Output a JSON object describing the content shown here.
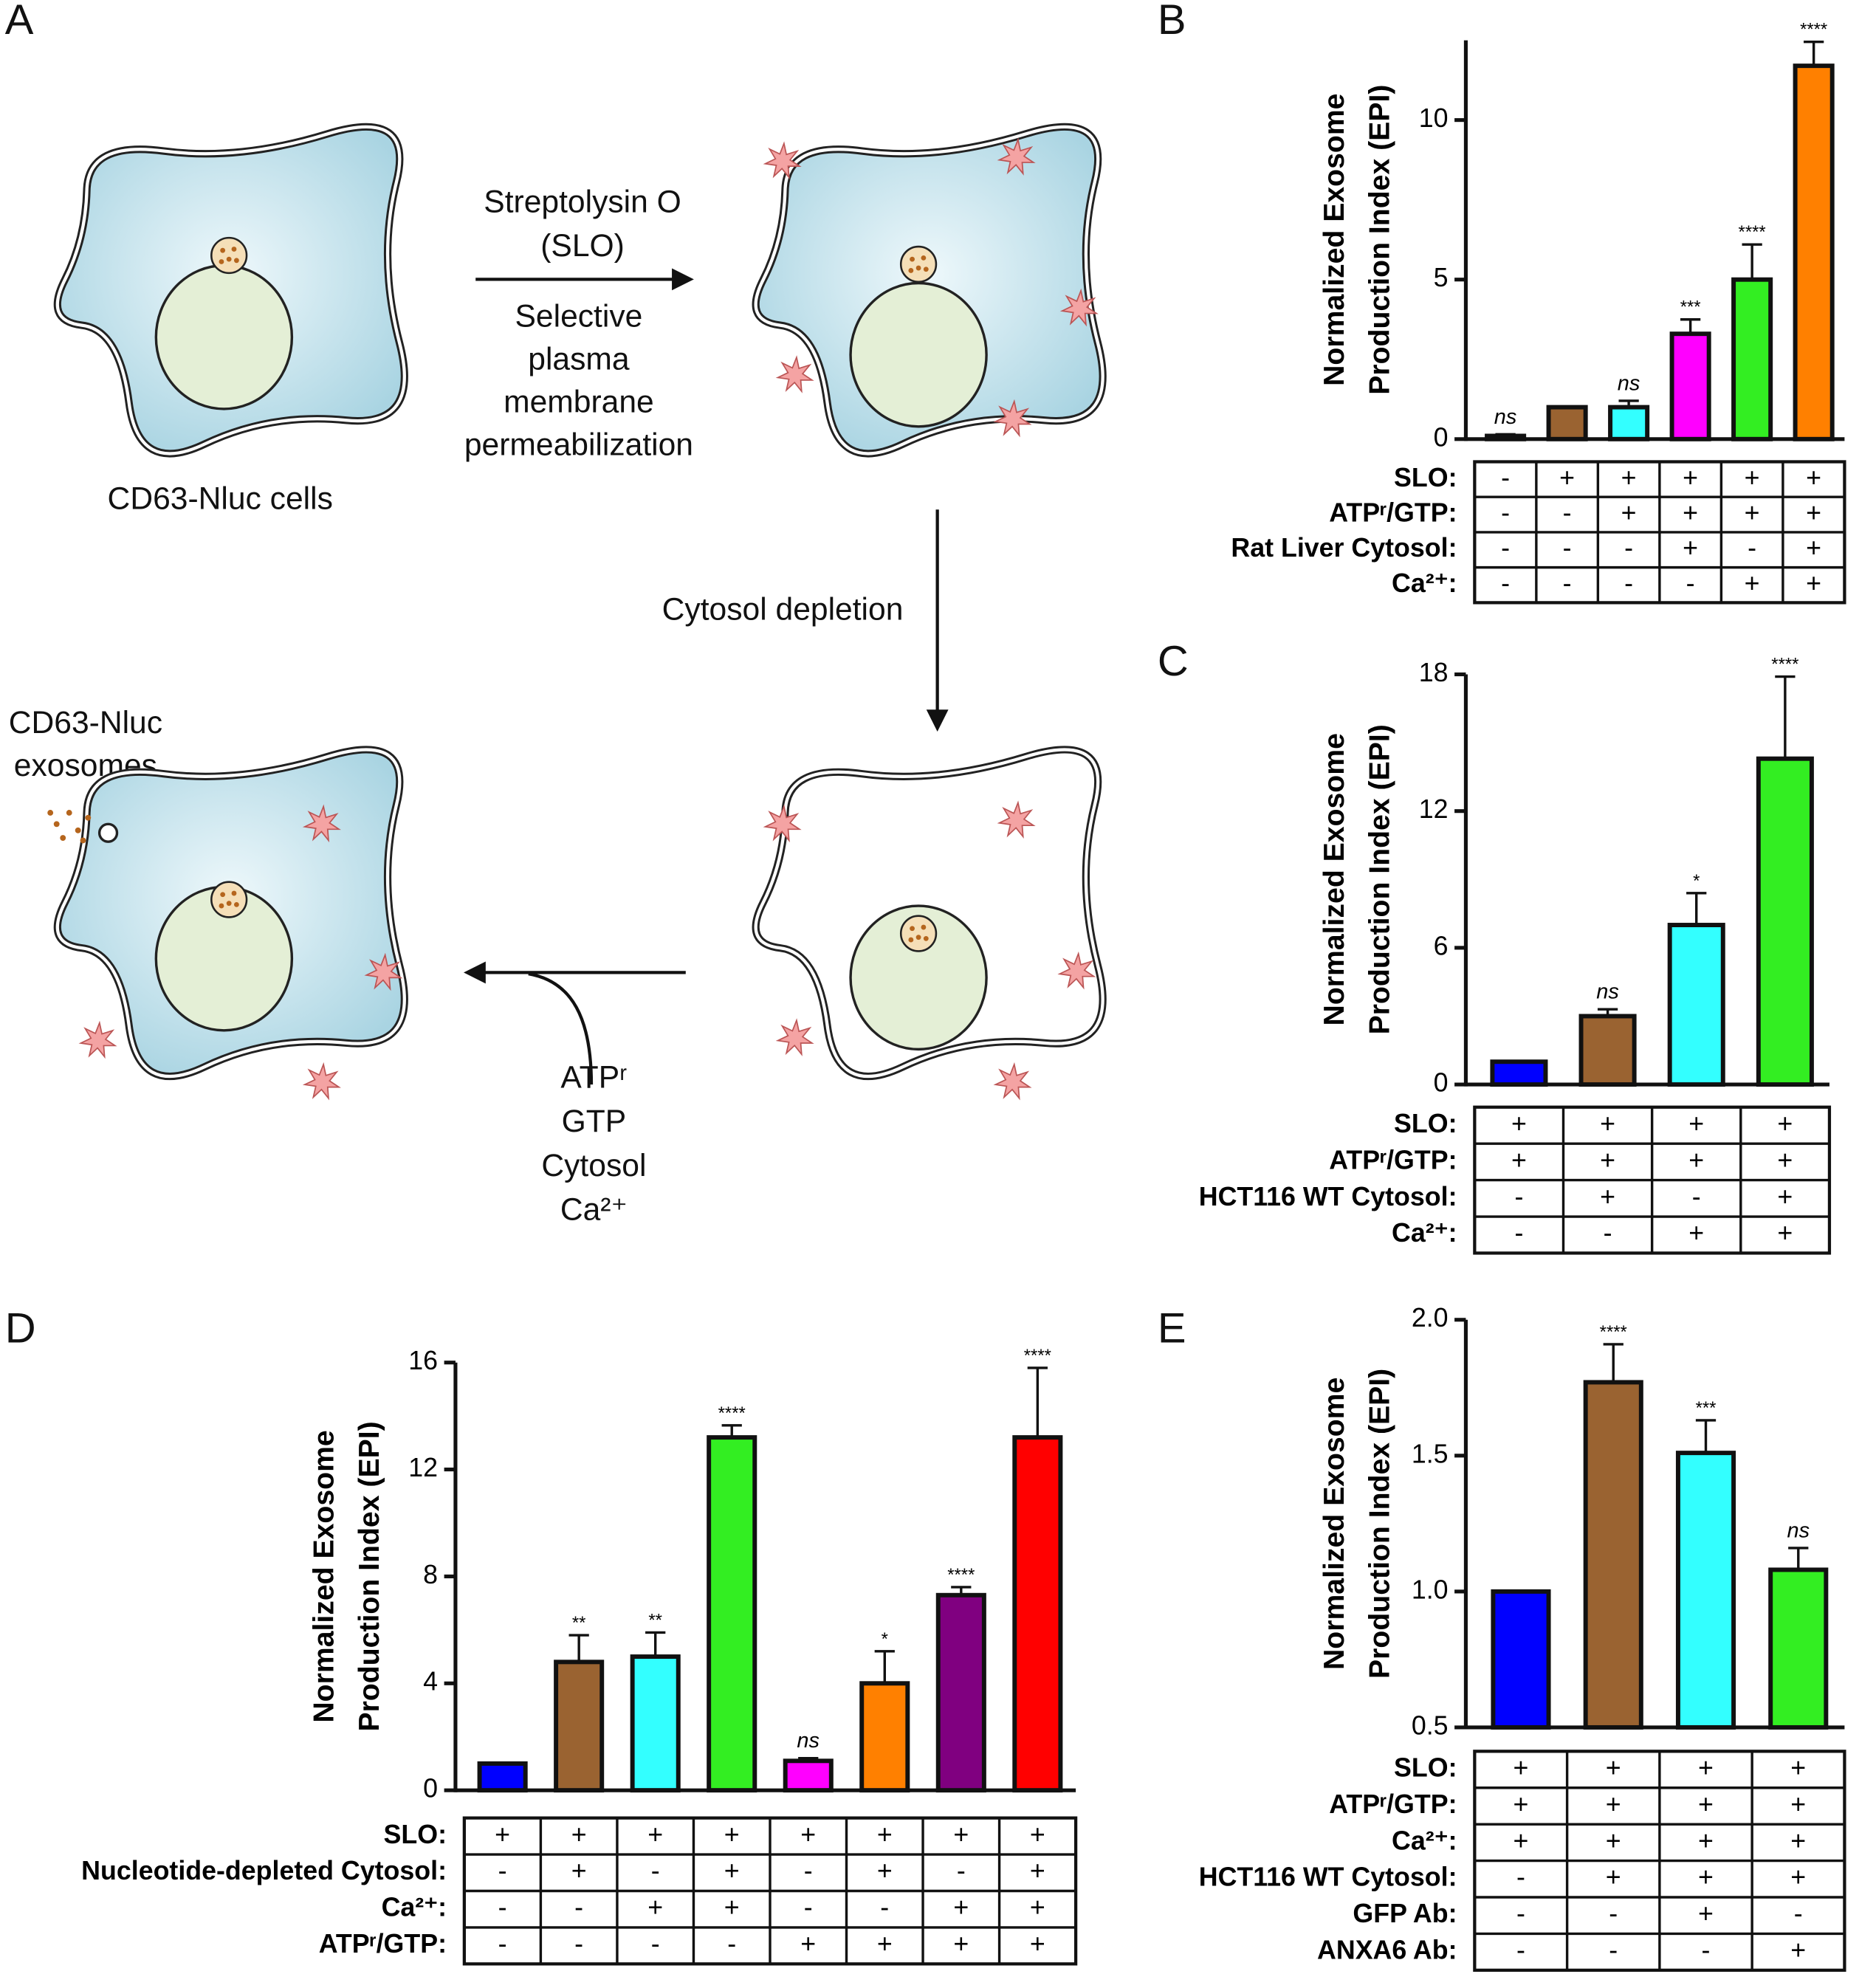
{
  "diagram": {
    "panel_label": "A",
    "arrow1_text": [
      "Streptolysin O",
      "(SLO)",
      "Selective",
      "plasma",
      "membrane",
      "permeabilization"
    ],
    "cell_label": "CD63-Nluc cells",
    "arrow2_text": "Cytosol depletion",
    "exosome_label": [
      "CD63-Nluc",
      "exosomes"
    ],
    "arrow3_text": [
      "ATPʳ",
      "GTP",
      "Cytosol",
      "Ca²⁺"
    ]
  },
  "chart_data": [
    {
      "type": "bar",
      "panel_label": "B",
      "y_label": [
        "Normalized Exosome",
        "Production Index (EPI)"
      ],
      "values": [
        0.1,
        1,
        1,
        3.3,
        5,
        11.7
      ],
      "errors": [
        0.05,
        0,
        0.2,
        0.45,
        1.1,
        0.75
      ],
      "colors": [
        "#0000ff",
        "#9a6331",
        "#33ffff",
        "#ff00ff",
        "#33ee22",
        "#ff8000"
      ],
      "annotations": [
        "ns",
        null,
        "ns",
        "***",
        "****",
        "****"
      ],
      "ylim": [
        0,
        12.5
      ],
      "yticks": [
        0,
        5,
        10
      ],
      "conditions": [
        {
          "name": "SLO:",
          "values": [
            "-",
            "+",
            "+",
            "+",
            "+",
            "+"
          ]
        },
        {
          "name": "ATPʳ/GTP:",
          "values": [
            "-",
            "-",
            "+",
            "+",
            "+",
            "+"
          ]
        },
        {
          "name": "Rat Liver Cytosol:",
          "values": [
            "-",
            "-",
            "-",
            "+",
            "-",
            "+"
          ]
        },
        {
          "name": "Ca²⁺:",
          "values": [
            "-",
            "-",
            "-",
            "-",
            "+",
            "+"
          ]
        }
      ]
    },
    {
      "type": "bar",
      "panel_label": "C",
      "y_label": [
        "Normalized Exosome",
        "Production Index (EPI)"
      ],
      "values": [
        1,
        3,
        7,
        14.3
      ],
      "errors": [
        0,
        0.3,
        1.4,
        3.6
      ],
      "colors": [
        "#0000ff",
        "#9a6331",
        "#33ffff",
        "#33ee22"
      ],
      "annotations": [
        null,
        "ns",
        "*",
        "****"
      ],
      "ylim": [
        0,
        18
      ],
      "yticks": [
        0,
        6,
        12,
        18
      ],
      "conditions": [
        {
          "name": "SLO:",
          "values": [
            "+",
            "+",
            "+",
            "+"
          ]
        },
        {
          "name": "ATPʳ/GTP:",
          "values": [
            "+",
            "+",
            "+",
            "+"
          ]
        },
        {
          "name": "HCT116 WT Cytosol:",
          "values": [
            "-",
            "+",
            "-",
            "+"
          ]
        },
        {
          "name": "Ca²⁺:",
          "values": [
            "-",
            "-",
            "+",
            "+"
          ]
        }
      ]
    },
    {
      "type": "bar",
      "panel_label": "D",
      "y_label": [
        "Normalized Exosome",
        "Production Index (EPI)"
      ],
      "values": [
        1,
        4.8,
        5,
        13.2,
        1.1,
        4,
        7.3,
        13.2
      ],
      "errors": [
        0,
        1,
        0.9,
        0.45,
        0.1,
        1.2,
        0.3,
        2.6
      ],
      "colors": [
        "#0000ff",
        "#9a6331",
        "#33ffff",
        "#33ee22",
        "#ff00ff",
        "#ff8000",
        "#800080",
        "#ff0000"
      ],
      "annotations": [
        null,
        "**",
        "**",
        "****",
        "ns",
        "*",
        "****",
        "****"
      ],
      "ylim": [
        0,
        16
      ],
      "yticks": [
        0,
        4,
        8,
        12,
        16
      ],
      "conditions": [
        {
          "name": "SLO:",
          "values": [
            "+",
            "+",
            "+",
            "+",
            "+",
            "+",
            "+",
            "+"
          ]
        },
        {
          "name": "Nucleotide-depleted Cytosol:",
          "values": [
            "-",
            "+",
            "-",
            "+",
            "-",
            "+",
            "-",
            "+"
          ]
        },
        {
          "name": "Ca²⁺:",
          "values": [
            "-",
            "-",
            "+",
            "+",
            "-",
            "-",
            "+",
            "+"
          ]
        },
        {
          "name": "ATPʳ/GTP:",
          "values": [
            "-",
            "-",
            "-",
            "-",
            "+",
            "+",
            "+",
            "+"
          ]
        }
      ]
    },
    {
      "type": "bar",
      "panel_label": "E",
      "y_label": [
        "Normalized Exosome",
        "Production Index (EPI)"
      ],
      "values": [
        1,
        1.77,
        1.51,
        1.08
      ],
      "errors": [
        0,
        0.14,
        0.12,
        0.08
      ],
      "colors": [
        "#0000ff",
        "#9a6331",
        "#33ffff",
        "#33ee22"
      ],
      "annotations": [
        null,
        "****",
        "***",
        "ns"
      ],
      "ylim": [
        0.5,
        2
      ],
      "yticks": [
        0.5,
        {
          "value": 1,
          "label": "1.0"
        },
        1.5,
        {
          "value": 2,
          "label": "2.0"
        }
      ],
      "conditions": [
        {
          "name": "SLO:",
          "values": [
            "+",
            "+",
            "+",
            "+"
          ]
        },
        {
          "name": "ATPʳ/GTP:",
          "values": [
            "+",
            "+",
            "+",
            "+"
          ]
        },
        {
          "name": "Ca²⁺:",
          "values": [
            "+",
            "+",
            "+",
            "+"
          ]
        },
        {
          "name": "HCT116 WT Cytosol:",
          "values": [
            "-",
            "+",
            "+",
            "+"
          ]
        },
        {
          "name": "GFP Ab:",
          "values": [
            "-",
            "-",
            "+",
            "-"
          ]
        },
        {
          "name": "ANXA6 Ab:",
          "values": [
            "-",
            "-",
            "-",
            "+"
          ]
        }
      ]
    }
  ]
}
